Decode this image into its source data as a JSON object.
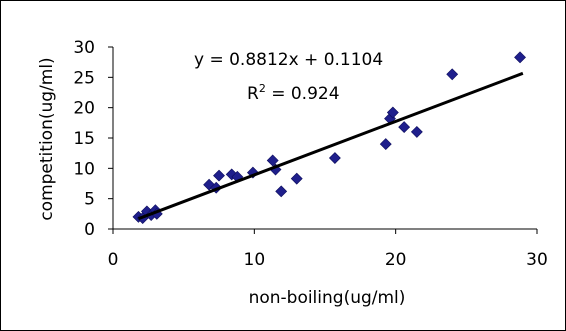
{
  "chart_data": {
    "type": "scatter",
    "xlabel": "non-boiling(ug/ml)",
    "ylabel": "competition(ug/ml)",
    "xlim": [
      0,
      30
    ],
    "ylim": [
      0,
      30
    ],
    "x_ticks": [
      "0",
      "10",
      "20",
      "30"
    ],
    "y_ticks": [
      "0",
      "5",
      "10",
      "15",
      "20",
      "25",
      "30"
    ],
    "grid": false,
    "legend": "none",
    "marker": "diamond",
    "marker_color": "#1f1f8c",
    "trendline": {
      "slope": 0.8812,
      "intercept": 0.1104,
      "x_range": [
        1.8,
        29
      ],
      "color": "#000000",
      "equation_label": "y = 0.8812x + 0.1104",
      "r2_prefix": "R",
      "r2_exponent": "2",
      "r2_value": " = 0.924"
    },
    "points": [
      {
        "x": 1.8,
        "y": 2.0
      },
      {
        "x": 2.1,
        "y": 1.8
      },
      {
        "x": 2.4,
        "y": 2.9
      },
      {
        "x": 2.7,
        "y": 2.3
      },
      {
        "x": 3.0,
        "y": 3.1
      },
      {
        "x": 3.1,
        "y": 2.5
      },
      {
        "x": 6.8,
        "y": 7.3
      },
      {
        "x": 7.3,
        "y": 6.8
      },
      {
        "x": 7.5,
        "y": 8.8
      },
      {
        "x": 8.4,
        "y": 9.0
      },
      {
        "x": 8.8,
        "y": 8.6
      },
      {
        "x": 9.9,
        "y": 9.3
      },
      {
        "x": 11.3,
        "y": 11.3
      },
      {
        "x": 11.5,
        "y": 9.8
      },
      {
        "x": 11.9,
        "y": 6.2
      },
      {
        "x": 13.0,
        "y": 8.3
      },
      {
        "x": 15.7,
        "y": 11.7
      },
      {
        "x": 19.3,
        "y": 14.0
      },
      {
        "x": 19.6,
        "y": 18.2
      },
      {
        "x": 19.8,
        "y": 19.2
      },
      {
        "x": 20.6,
        "y": 16.8
      },
      {
        "x": 21.5,
        "y": 16.0
      },
      {
        "x": 24.0,
        "y": 25.5
      },
      {
        "x": 28.8,
        "y": 28.3
      }
    ]
  }
}
